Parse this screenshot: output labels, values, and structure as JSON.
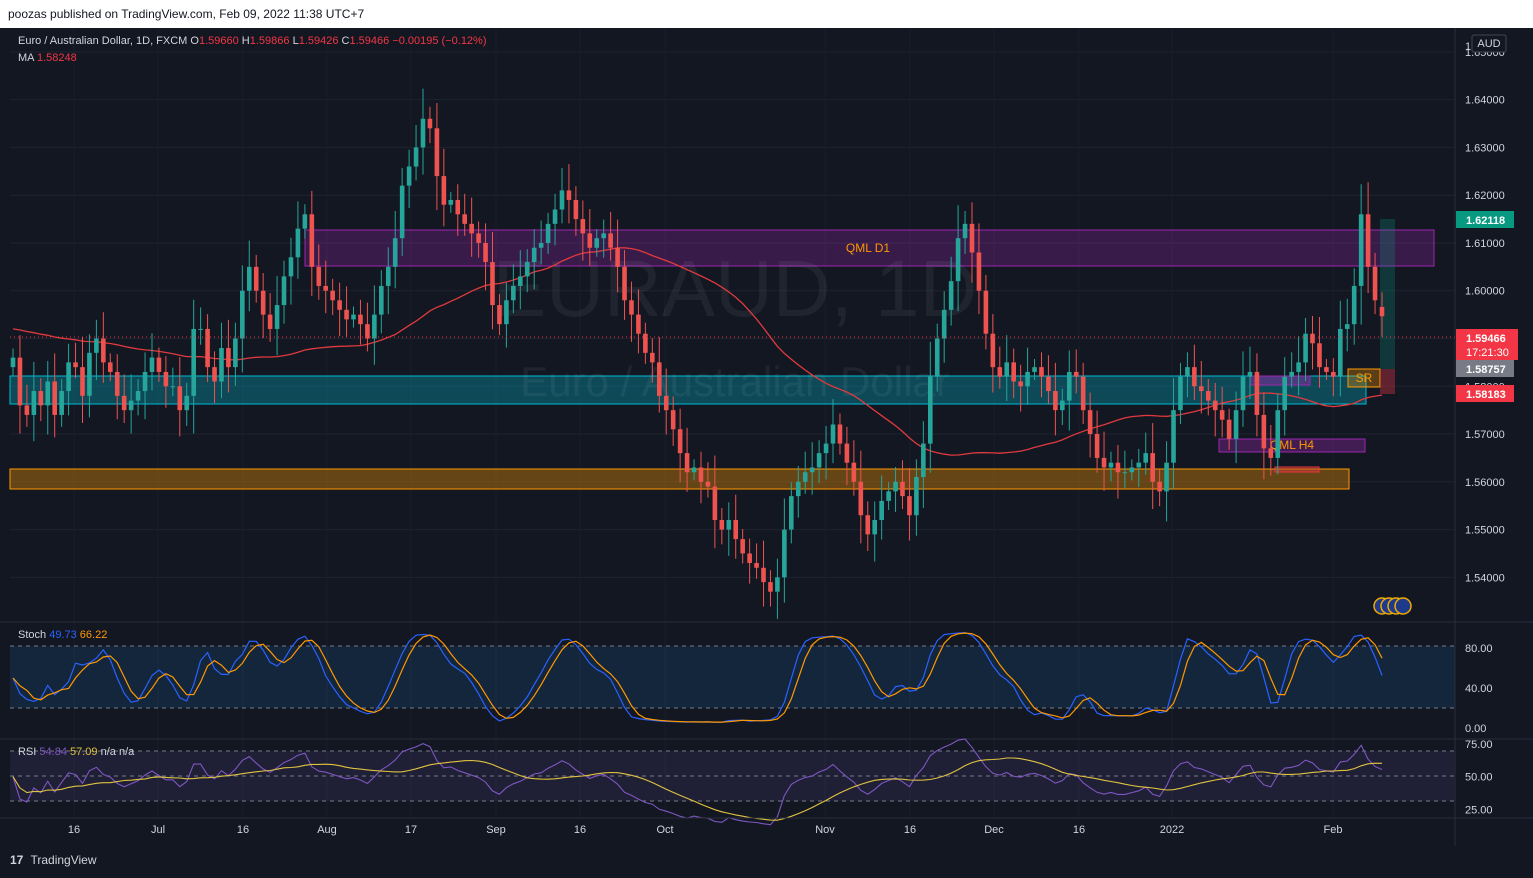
{
  "header": {
    "publish_line": "poozas published on TradingView.com, Feb 09, 2022 11:38 UTC+7"
  },
  "footer": {
    "brand": "TradingView"
  },
  "legend": {
    "symbol": "Euro / Australian Dollar, 1D, FXCM",
    "o_label": "O",
    "o_value": "1.59660",
    "h_label": "H",
    "h_value": "1.59866",
    "l_label": "L",
    "l_value": "1.59426",
    "c_label": "C",
    "c_value": "1.59466",
    "change": "−0.00195 (−0.12%)",
    "ma_label": "MA",
    "ma_value": "1.58248"
  },
  "watermark": {
    "ticker": "EURAUD, 1D",
    "name": "Euro / Australian Dollar"
  },
  "currency_badge": "AUD",
  "price_axis": {
    "ticks": [
      "1.65000",
      "1.64000",
      "1.63000",
      "1.62000",
      "1.61000",
      "1.60000",
      "1.59000",
      "1.58000",
      "1.57000",
      "1.56000",
      "1.55000",
      "1.54000"
    ],
    "top_partial": "1.6",
    "labels": {
      "high": "1.62118",
      "high_color": "#089981",
      "last": "1.59466",
      "countdown": "17:21:30",
      "last_color": "#f23645",
      "mid": "1.58757",
      "mid_color": "#787b86",
      "ma": "1.58183",
      "ma_color": "#f23645"
    }
  },
  "time_axis": {
    "labels": [
      "16",
      "Jul",
      "16",
      "Aug",
      "17",
      "Sep",
      "16",
      "Oct",
      "Nov",
      "16",
      "Dec",
      "16",
      "2022",
      "Feb"
    ]
  },
  "zones": {
    "qml_d1": "QML D1",
    "qml_h4": "QML H4",
    "sr": "SR"
  },
  "stoch": {
    "label": "Stoch",
    "k": "49.73",
    "d": "66.22",
    "ticks": [
      "80.00",
      "40.00",
      "0.00"
    ],
    "k_color": "#2962ff",
    "d_color": "#ff9800"
  },
  "rsi": {
    "label": "RSI",
    "value": "54.84",
    "ma": "57.09",
    "na1": "n/a",
    "na2": "n/a",
    "ticks": [
      "75.00",
      "50.00",
      "25.00"
    ],
    "rsi_color": "#7e57c2",
    "ma_color": "#e0c341"
  },
  "colors": {
    "up": "#26a69a",
    "down": "#ef5350",
    "bg": "#131722",
    "grid": "#1f2330",
    "ma_line": "#e03a3e"
  },
  "chart_data": [
    {
      "type": "candlestick",
      "symbol": "EURAUD",
      "timeframe": "1D",
      "x_range": [
        "2021-06-08",
        "2022-02-08"
      ],
      "ylim": [
        1.534,
        1.655
      ],
      "y_ticks": [
        1.54,
        1.55,
        1.56,
        1.57,
        1.58,
        1.59,
        1.6,
        1.61,
        1.62,
        1.63,
        1.64,
        1.65
      ],
      "last_ohlc": {
        "open": 1.5966,
        "high": 1.59866,
        "low": 1.59426,
        "close": 1.59466
      },
      "closes": [
        1.586,
        1.576,
        1.574,
        1.579,
        1.576,
        1.581,
        1.574,
        1.579,
        1.585,
        1.584,
        1.578,
        1.587,
        1.59,
        1.585,
        1.583,
        1.578,
        1.575,
        1.577,
        1.579,
        1.583,
        1.586,
        1.583,
        1.58,
        1.58,
        1.575,
        1.578,
        1.592,
        1.592,
        1.584,
        1.581,
        1.588,
        1.584,
        1.59,
        1.6,
        1.605,
        1.6,
        1.595,
        1.592,
        1.597,
        1.603,
        1.607,
        1.613,
        1.616,
        1.605,
        1.601,
        1.6,
        1.598,
        1.596,
        1.594,
        1.595,
        1.593,
        1.59,
        1.595,
        1.601,
        1.605,
        1.611,
        1.622,
        1.626,
        1.63,
        1.636,
        1.634,
        1.624,
        1.618,
        1.619,
        1.616,
        1.614,
        1.612,
        1.61,
        1.606,
        1.597,
        1.593,
        1.598,
        1.601,
        1.603,
        1.606,
        1.609,
        1.61,
        1.614,
        1.617,
        1.621,
        1.619,
        1.615,
        1.612,
        1.609,
        1.611,
        1.612,
        1.609,
        1.605,
        1.598,
        1.595,
        1.591,
        1.587,
        1.585,
        1.578,
        1.575,
        1.571,
        1.566,
        1.562,
        1.563,
        1.56,
        1.559,
        1.552,
        1.55,
        1.552,
        1.548,
        1.545,
        1.543,
        1.542,
        1.539,
        1.537,
        1.54,
        1.55,
        1.557,
        1.56,
        1.562,
        1.563,
        1.566,
        1.568,
        1.572,
        1.568,
        1.564,
        1.56,
        1.553,
        1.549,
        1.552,
        1.556,
        1.558,
        1.56,
        1.557,
        1.553,
        1.561,
        1.568,
        1.582,
        1.59,
        1.596,
        1.602,
        1.611,
        1.614,
        1.608,
        1.6,
        1.591,
        1.584,
        1.582,
        1.585,
        1.581,
        1.58,
        1.583,
        1.584,
        1.582,
        1.579,
        1.575,
        1.577,
        1.583,
        1.582,
        1.575,
        1.57,
        1.565,
        1.563,
        1.564,
        1.562,
        1.562,
        1.563,
        1.564,
        1.566,
        1.56,
        1.558,
        1.564,
        1.575,
        1.582,
        1.584,
        1.58,
        1.579,
        1.577,
        1.575,
        1.573,
        1.569,
        1.575,
        1.582,
        1.583,
        1.574,
        1.567,
        1.565,
        1.575,
        1.582,
        1.583,
        1.585,
        1.591,
        1.589,
        1.584,
        1.583,
        1.582,
        1.592,
        1.593,
        1.601,
        1.616,
        1.605,
        1.598,
        1.595
      ]
    },
    {
      "type": "line",
      "name": "MA",
      "last_value": 1.58248
    },
    {
      "type": "line",
      "name": "Stoch",
      "ylim": [
        -5,
        100
      ],
      "y_ticks": [
        0,
        40,
        80
      ],
      "last_k": 49.73,
      "last_d": 66.22
    },
    {
      "type": "line",
      "name": "RSI",
      "ylim": [
        20,
        78
      ],
      "y_ticks": [
        25,
        50,
        75
      ],
      "last_rsi": 54.84,
      "last_ma": 57.09
    }
  ]
}
